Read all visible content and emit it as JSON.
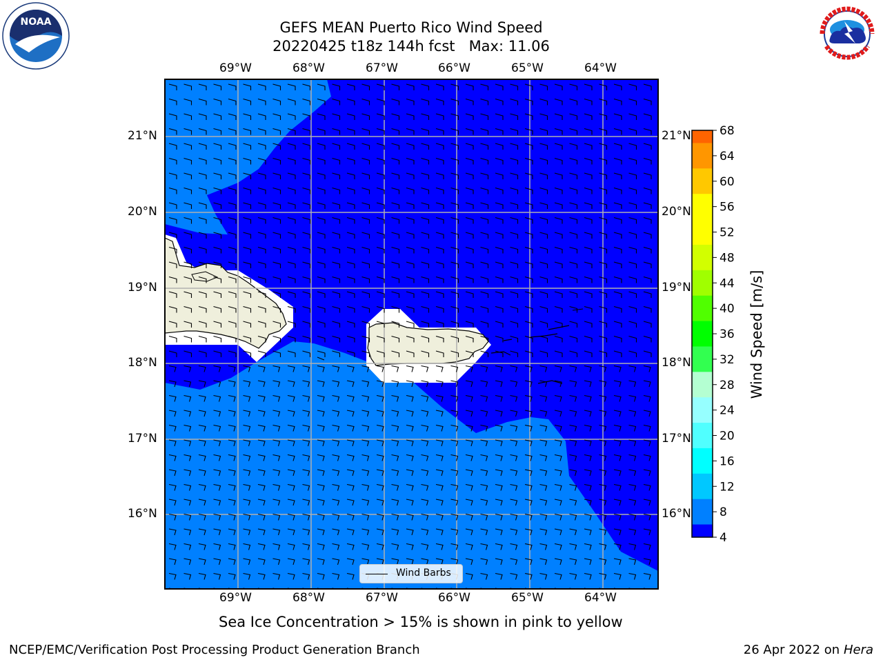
{
  "title_line1": "GEFS MEAN Puerto Rico Wind Speed",
  "title_line2": "20220425 t18z 144h fcst   Max: 11.06",
  "lon_labels": [
    "69°W",
    "68°W",
    "67°W",
    "66°W",
    "65°W",
    "64°W"
  ],
  "lat_labels": [
    "21°N",
    "20°N",
    "19°N",
    "18°N",
    "17°N",
    "16°N"
  ],
  "legend_label": "Wind Barbs",
  "colorbar": {
    "label": "Wind Speed [m/s]",
    "ticks": [
      "68",
      "64",
      "60",
      "56",
      "52",
      "48",
      "44",
      "40",
      "36",
      "32",
      "28",
      "24",
      "20",
      "16",
      "12",
      "8",
      "4"
    ],
    "colors": [
      "#0000ff",
      "#0080ff",
      "#00c8ff",
      "#00ffff",
      "#50ffff",
      "#96ffff",
      "#b4ffd2",
      "#32ff50",
      "#00ff00",
      "#50ff00",
      "#a0ff00",
      "#d2ff00",
      "#ffff00",
      "#ffff00",
      "#ffc800",
      "#ff9600",
      "#ff6400",
      "#ff3200",
      "#ff0000"
    ],
    "levels": [
      4,
      8,
      12,
      16,
      20,
      24,
      28,
      32,
      36,
      40,
      44,
      48,
      52,
      56,
      60,
      64,
      68
    ]
  },
  "subtitle": "Sea Ice Concentration > 15% is shown in pink to yellow",
  "footer_left": "NCEP/EMC/Verification Post Processing Product Generation Branch",
  "footer_date": "26 Apr 2022 on ",
  "footer_machine": "Hera",
  "logos": {
    "noaa": "NOAA",
    "nws_text": "NATIONAL WEATHER SERVICE"
  },
  "colors": {
    "region_low": "#0000ff",
    "region_mid": "#0080ff",
    "land": "#efefdc",
    "grid": "#b0b0b0"
  },
  "map_data": {
    "lon_range": [
      -70.0,
      -63.25
    ],
    "lat_range": [
      15.0,
      21.75
    ],
    "max_wind": 11.06
  }
}
